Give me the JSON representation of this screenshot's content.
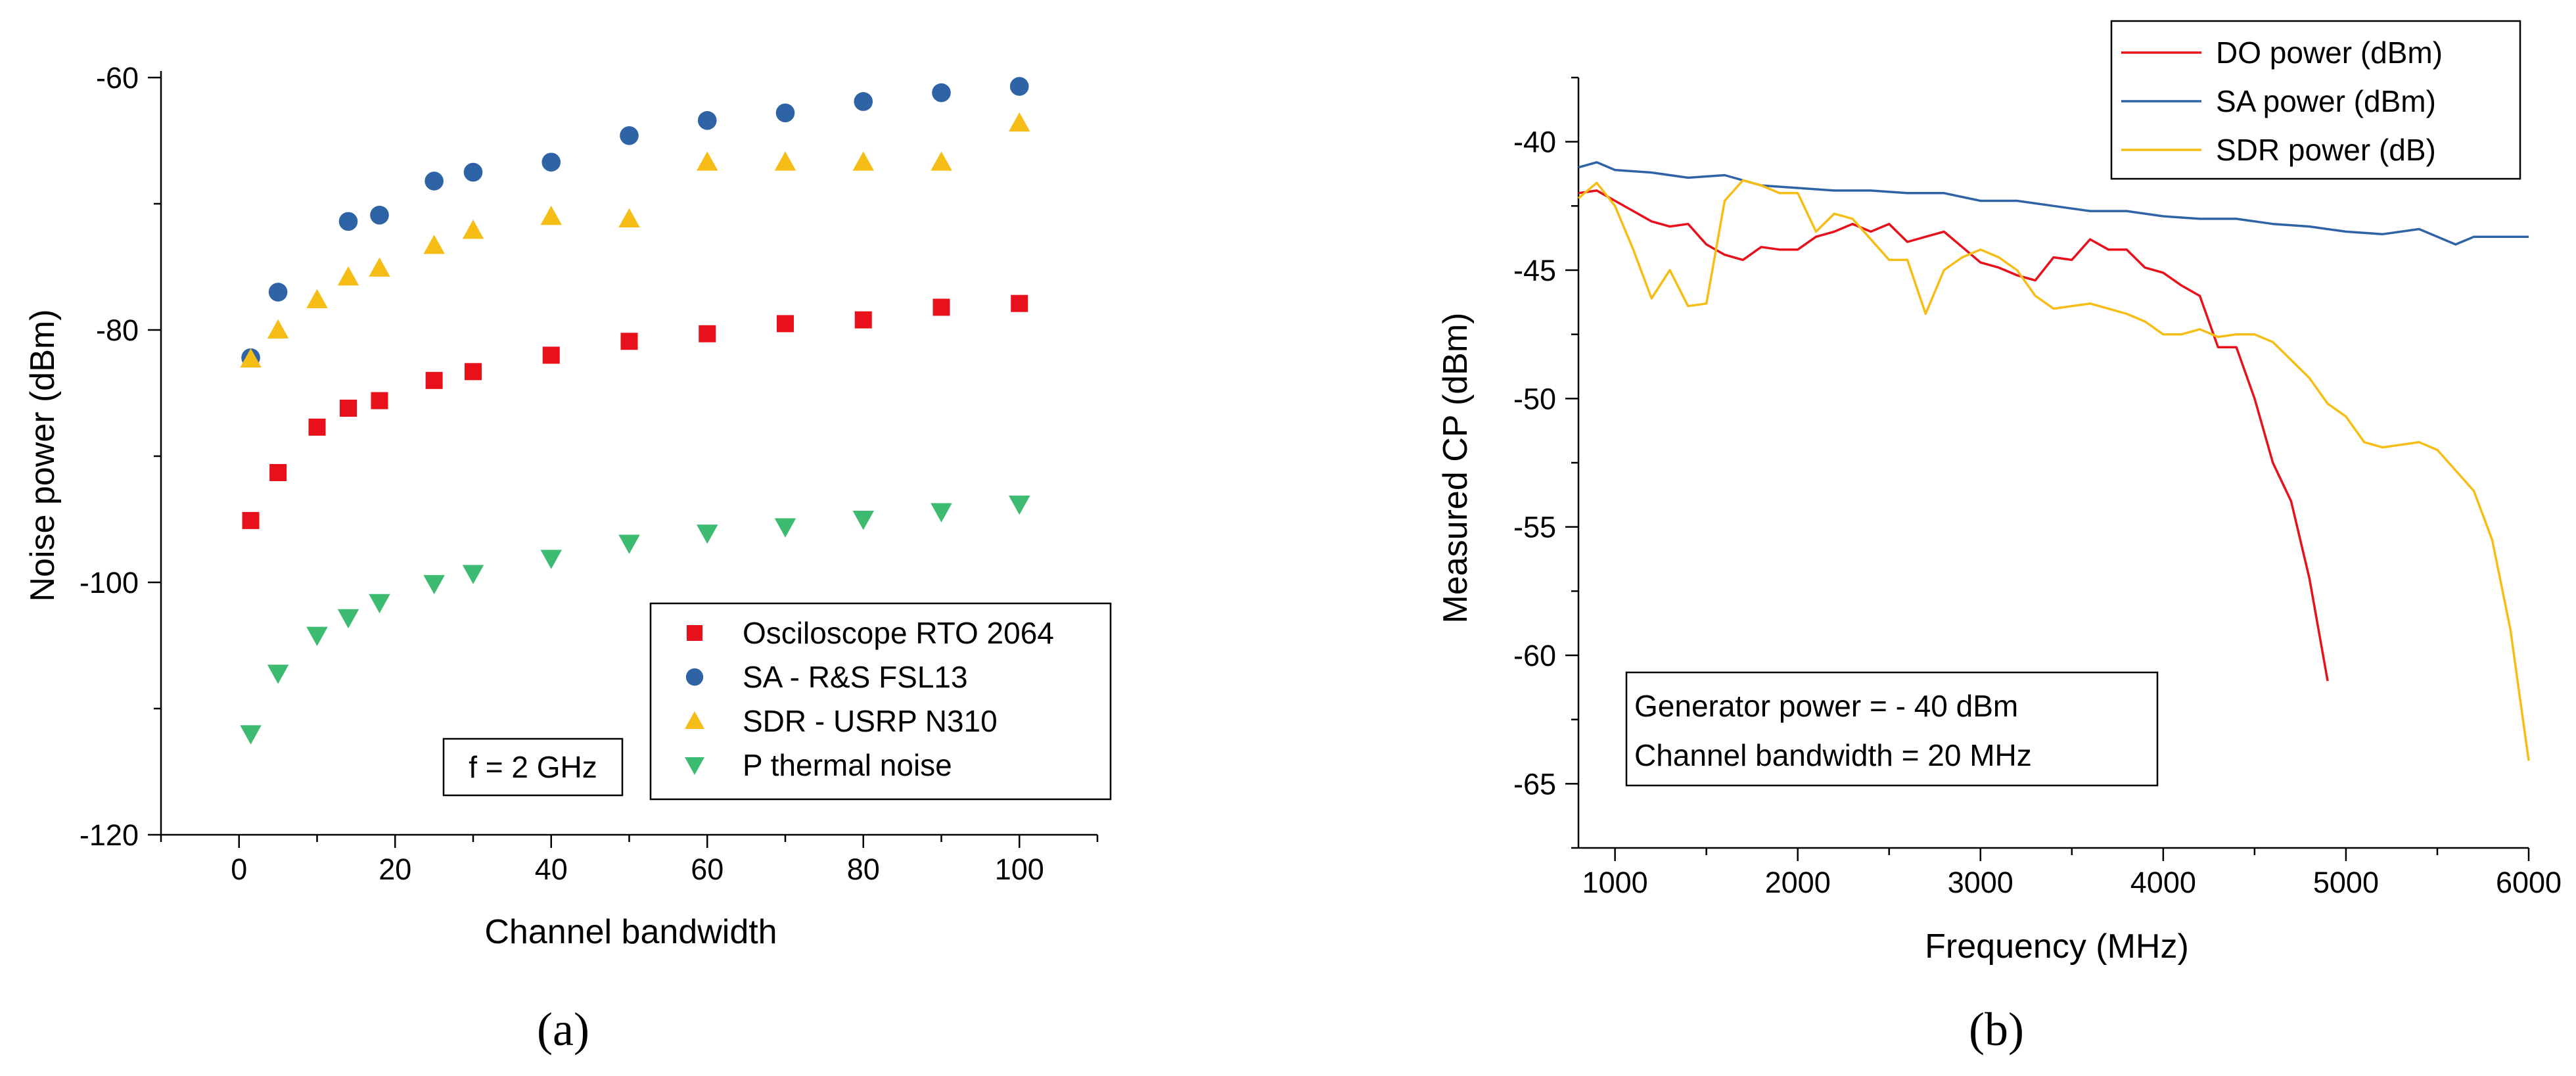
{
  "chart_data": [
    {
      "type": "scatter",
      "caption": "(a)",
      "xlabel": "Channel bandwidth",
      "ylabel": "Noise power (dBm)",
      "xlim": [
        -10,
        110
      ],
      "ylim": [
        -120,
        -60
      ],
      "xticks": [
        0,
        20,
        40,
        60,
        80,
        100
      ],
      "yticks": [
        -120,
        -100,
        -80,
        -60
      ],
      "x": [
        1.5,
        5,
        10,
        14,
        18,
        25,
        30,
        40,
        50,
        60,
        70,
        80,
        90,
        100
      ],
      "series": [
        {
          "name": "Osciloscope RTO 2064",
          "marker": "square",
          "color": "#e8101a",
          "values": [
            -95.1,
            -91.3,
            -87.7,
            -86.2,
            -85.6,
            -84.0,
            -83.3,
            -82.0,
            -80.9,
            -80.3,
            -79.5,
            -79.2,
            -78.2,
            -77.9
          ]
        },
        {
          "name": "SA - R&S FSL13",
          "marker": "circle",
          "color": "#2e63a5",
          "values": [
            -82.2,
            -77.0,
            null,
            -71.4,
            -70.9,
            -68.2,
            -67.5,
            -66.7,
            -64.6,
            -63.4,
            -62.8,
            -61.9,
            -61.2,
            -60.7
          ]
        },
        {
          "name": "SDR - USRP N310",
          "marker": "triangle-up",
          "color": "#f6bd16",
          "values": [
            -82.3,
            -80.0,
            -77.6,
            -75.8,
            -75.1,
            -73.3,
            -72.1,
            -71.0,
            -71.2,
            -66.7,
            -66.7,
            -66.7,
            -66.7,
            -63.6
          ]
        },
        {
          "name": "P thermal noise",
          "marker": "triangle-down",
          "color": "#3dbb70",
          "values": [
            -112.0,
            -107.2,
            -104.2,
            -102.8,
            -101.6,
            -100.1,
            -99.3,
            -98.1,
            -96.9,
            -96.1,
            -95.6,
            -95.0,
            -94.4,
            -93.8
          ]
        }
      ],
      "annotation": "f = 2 GHz"
    },
    {
      "type": "line",
      "caption": "(b)",
      "xlabel": "Frequency (MHz)",
      "ylabel": "Measured CP (dBm)",
      "xlim": [
        800,
        6000
      ],
      "ylim": [
        -67.5,
        -37.5
      ],
      "xticks": [
        1000,
        2000,
        3000,
        4000,
        5000,
        6000
      ],
      "yticks": [
        -65,
        -60,
        -55,
        -50,
        -45,
        -40
      ],
      "series": [
        {
          "name": "DO power (dBm)",
          "color": "#e8101a",
          "x": [
            800,
            900,
            1000,
            1100,
            1200,
            1300,
            1400,
            1500,
            1600,
            1700,
            1800,
            1900,
            2000,
            2100,
            2200,
            2300,
            2400,
            2500,
            2600,
            2700,
            2800,
            2900,
            3000,
            3100,
            3200,
            3300,
            3400,
            3500,
            3600,
            3700,
            3800,
            3900,
            4000,
            4100,
            4200,
            4300,
            4400,
            4500,
            4600,
            4700,
            4800,
            4900
          ],
          "y": [
            -42.0,
            -41.9,
            -42.3,
            -42.7,
            -43.1,
            -43.3,
            -43.2,
            -44.0,
            -44.4,
            -44.6,
            -44.1,
            -44.2,
            -44.2,
            -43.7,
            -43.5,
            -43.2,
            -43.5,
            -43.2,
            -43.9,
            -43.7,
            -43.5,
            -44.1,
            -44.7,
            -44.9,
            -45.2,
            -45.4,
            -44.5,
            -44.6,
            -43.8,
            -44.2,
            -44.2,
            -44.9,
            -45.1,
            -45.6,
            -46.0,
            -48.0,
            -48.0,
            -50.0,
            -52.5,
            -54.0,
            -57.0,
            -61.0
          ]
        },
        {
          "name": "SA power (dBm)",
          "color": "#2e63a5",
          "x": [
            800,
            900,
            1000,
            1200,
            1400,
            1600,
            1800,
            2000,
            2200,
            2400,
            2600,
            2800,
            3000,
            3200,
            3400,
            3600,
            3800,
            4000,
            4200,
            4400,
            4600,
            4800,
            5000,
            5200,
            5400,
            5600,
            5700,
            6000
          ],
          "y": [
            -41.0,
            -40.8,
            -41.1,
            -41.2,
            -41.4,
            -41.3,
            -41.7,
            -41.8,
            -41.9,
            -41.9,
            -42.0,
            -42.0,
            -42.3,
            -42.3,
            -42.5,
            -42.7,
            -42.7,
            -42.9,
            -43.0,
            -43.0,
            -43.2,
            -43.3,
            -43.5,
            -43.6,
            -43.4,
            -44.0,
            -43.7,
            -43.7
          ]
        },
        {
          "name": "SDR power (dB)",
          "color": "#f6bd16",
          "x": [
            800,
            900,
            1000,
            1100,
            1200,
            1300,
            1400,
            1500,
            1600,
            1700,
            1800,
            1900,
            2000,
            2100,
            2200,
            2300,
            2400,
            2500,
            2600,
            2700,
            2800,
            2900,
            3000,
            3100,
            3200,
            3300,
            3400,
            3500,
            3600,
            3700,
            3800,
            3900,
            4000,
            4100,
            4200,
            4300,
            4400,
            4500,
            4600,
            4700,
            4800,
            4900,
            5000,
            5100,
            5200,
            5300,
            5400,
            5500,
            5600,
            5700,
            5800,
            5900,
            6000
          ],
          "y": [
            -42.2,
            -41.6,
            -42.5,
            -44.2,
            -46.1,
            -45.0,
            -46.4,
            -46.3,
            -42.3,
            -41.5,
            -41.7,
            -42.0,
            -42.0,
            -43.5,
            -42.8,
            -43.0,
            -43.8,
            -44.6,
            -44.6,
            -46.7,
            -45.0,
            -44.5,
            -44.2,
            -44.5,
            -45.0,
            -46.0,
            -46.5,
            -46.4,
            -46.3,
            -46.5,
            -46.7,
            -47.0,
            -47.5,
            -47.5,
            -47.3,
            -47.6,
            -47.5,
            -47.5,
            -47.8,
            -48.5,
            -49.2,
            -50.2,
            -50.7,
            -51.7,
            -51.9,
            -51.8,
            -51.7,
            -52.0,
            -52.8,
            -53.6,
            -55.5,
            -59.0,
            -64.1
          ]
        }
      ],
      "annotations": [
        "Generator power = - 40 dBm",
        "Channel bandwidth = 20 MHz"
      ]
    }
  ]
}
